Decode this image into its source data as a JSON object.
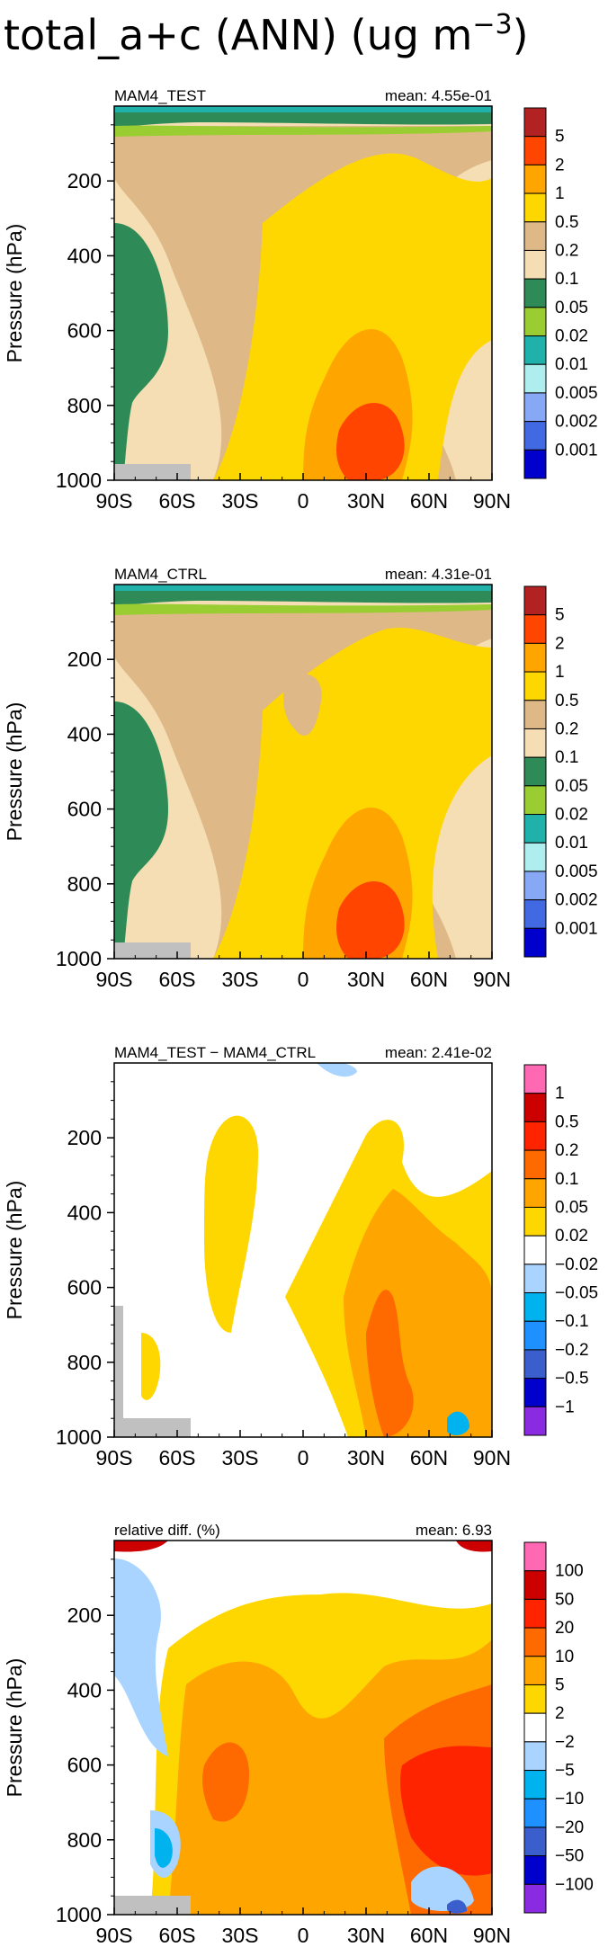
{
  "figure": {
    "title_main": "total_a+c (ANN) (ug m",
    "title_exp": "−3",
    "title_close": ")"
  },
  "chart_data": [
    {
      "type": "heatmap",
      "title": "MAM4_TEST",
      "stat": "mean:  4.55e-01",
      "xlabel": "",
      "ylabel": "Pressure  (hPa)",
      "x_ticks": [
        "90S",
        "60S",
        "30S",
        "0",
        "30N",
        "60N",
        "90N"
      ],
      "y_ticks": [
        "200",
        "400",
        "600",
        "800",
        "1000"
      ],
      "xlim": [
        -90,
        90
      ],
      "ylim": [
        1000,
        0
      ],
      "colorbar": {
        "labels": [
          "5",
          "2",
          "1",
          "0.5",
          "0.2",
          "0.1",
          "0.05",
          "0.02",
          "0.01",
          "0.005",
          "0.002",
          "0.001"
        ],
        "colors": [
          "#b22222",
          "#ff4500",
          "#ffa500",
          "#ffd700",
          "#deb887",
          "#f5deb3",
          "#2e8b57",
          "#9acd32",
          "#20b2aa",
          "#afeeee",
          "#87a8f5",
          "#4169e1",
          "#0000cd"
        ]
      },
      "mean_value": 0.455
    },
    {
      "type": "heatmap",
      "title": "MAM4_CTRL",
      "stat": "mean:  4.31e-01",
      "xlabel": "",
      "ylabel": "Pressure  (hPa)",
      "x_ticks": [
        "90S",
        "60S",
        "30S",
        "0",
        "30N",
        "60N",
        "90N"
      ],
      "y_ticks": [
        "200",
        "400",
        "600",
        "800",
        "1000"
      ],
      "xlim": [
        -90,
        90
      ],
      "ylim": [
        1000,
        0
      ],
      "colorbar": {
        "labels": [
          "5",
          "2",
          "1",
          "0.5",
          "0.2",
          "0.1",
          "0.05",
          "0.02",
          "0.01",
          "0.005",
          "0.002",
          "0.001"
        ],
        "colors": [
          "#b22222",
          "#ff4500",
          "#ffa500",
          "#ffd700",
          "#deb887",
          "#f5deb3",
          "#2e8b57",
          "#9acd32",
          "#20b2aa",
          "#afeeee",
          "#87a8f5",
          "#4169e1",
          "#0000cd"
        ]
      },
      "mean_value": 0.431
    },
    {
      "type": "heatmap",
      "title": "MAM4_TEST − MAM4_CTRL",
      "stat": "mean:  2.41e-02",
      "xlabel": "",
      "ylabel": "Pressure  (hPa)",
      "x_ticks": [
        "90S",
        "60S",
        "30S",
        "0",
        "30N",
        "60N",
        "90N"
      ],
      "y_ticks": [
        "200",
        "400",
        "600",
        "800",
        "1000"
      ],
      "xlim": [
        -90,
        90
      ],
      "ylim": [
        1000,
        0
      ],
      "colorbar": {
        "labels": [
          "1",
          "0.5",
          "0.2",
          "0.1",
          "0.05",
          "0.02",
          "−0.02",
          "−0.05",
          "−0.1",
          "−0.2",
          "−0.5",
          "−1"
        ],
        "colors": [
          "#ff69b4",
          "#cc0000",
          "#ff2400",
          "#ff6a00",
          "#ffa500",
          "#ffd700",
          "#ffffff",
          "#a8d4ff",
          "#00b2ee",
          "#1e90ff",
          "#3a5fcd",
          "#0000cd",
          "#8a2be2"
        ]
      },
      "mean_value": 0.0241
    },
    {
      "type": "heatmap",
      "title": "relative diff. (%)",
      "stat": "mean:    6.93",
      "xlabel": "",
      "ylabel": "Pressure  (hPa)",
      "x_ticks": [
        "90S",
        "60S",
        "30S",
        "0",
        "30N",
        "60N",
        "90N"
      ],
      "y_ticks": [
        "200",
        "400",
        "600",
        "800",
        "1000"
      ],
      "xlim": [
        -90,
        90
      ],
      "ylim": [
        1000,
        0
      ],
      "colorbar": {
        "labels": [
          "100",
          "50",
          "20",
          "10",
          "5",
          "2",
          "−2",
          "−5",
          "−10",
          "−20",
          "−50",
          "−100"
        ],
        "colors": [
          "#ff69b4",
          "#cc0000",
          "#ff2400",
          "#ff6a00",
          "#ffa500",
          "#ffd700",
          "#ffffff",
          "#a8d4ff",
          "#00b2ee",
          "#1e90ff",
          "#3a5fcd",
          "#0000cd",
          "#8a2be2"
        ]
      },
      "mean_value": 6.93
    }
  ]
}
